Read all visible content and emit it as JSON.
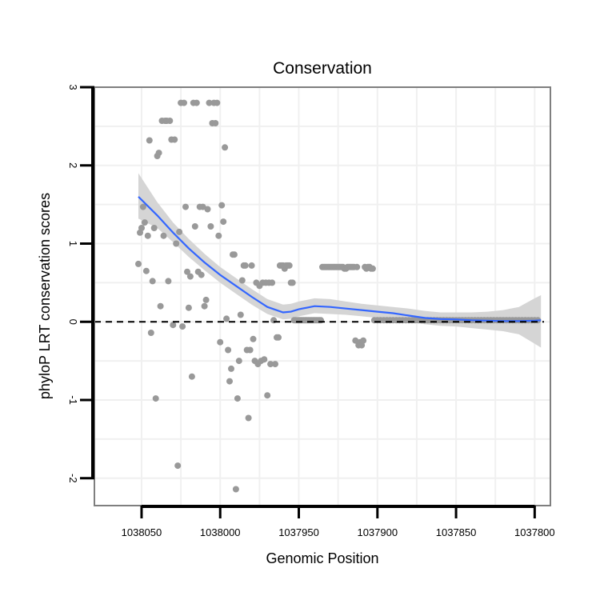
{
  "chart_data": {
    "type": "scatter",
    "title": "Conservation",
    "xlabel": "Genomic Position",
    "ylabel": "phyloP LRT conservation scores",
    "xlim": [
      1038080,
      1037790
    ],
    "x_reversed": true,
    "ylim": [
      -2.35,
      3.0
    ],
    "xticks": [
      1038050,
      1038000,
      1037950,
      1037900,
      1037850,
      1037800
    ],
    "yticks": [
      -2,
      -1,
      0,
      1,
      2,
      3
    ],
    "grid": true,
    "reference_line": {
      "y": 0,
      "style": "dashed",
      "color": "#000000"
    },
    "colors": {
      "points": "#999999",
      "smooth": "#3366ff",
      "ribbon": "#d3d3d3",
      "grid": "#f0f0f0",
      "panel_border": "#7f7f7f"
    },
    "points": [
      [
        1038052,
        0.74
      ],
      [
        1038051,
        1.14
      ],
      [
        1038050,
        1.2
      ],
      [
        1038049,
        1.47
      ],
      [
        1038048,
        1.27
      ],
      [
        1038047,
        0.65
      ],
      [
        1038046,
        1.1
      ],
      [
        1038045,
        2.32
      ],
      [
        1038044,
        -0.14
      ],
      [
        1038043,
        0.52
      ],
      [
        1038042,
        1.2
      ],
      [
        1038041,
        -0.98
      ],
      [
        1038040,
        2.12
      ],
      [
        1038039,
        2.16
      ],
      [
        1038038,
        0.2
      ],
      [
        1038037,
        2.57
      ],
      [
        1038036,
        1.1
      ],
      [
        1038035,
        2.57
      ],
      [
        1038034,
        2.57
      ],
      [
        1038033,
        0.52
      ],
      [
        1038032,
        2.57
      ],
      [
        1038031,
        2.33
      ],
      [
        1038030,
        -0.04
      ],
      [
        1038029,
        2.33
      ],
      [
        1038028,
        1.0
      ],
      [
        1038027,
        -1.84
      ],
      [
        1038026,
        1.15
      ],
      [
        1038025,
        2.8
      ],
      [
        1038024,
        -0.06
      ],
      [
        1038023,
        2.8
      ],
      [
        1038022,
        1.47
      ],
      [
        1038021,
        0.64
      ],
      [
        1038020,
        0.18
      ],
      [
        1038019,
        0.58
      ],
      [
        1038018,
        -0.7
      ],
      [
        1038017,
        2.8
      ],
      [
        1038016,
        1.22
      ],
      [
        1038015,
        2.8
      ],
      [
        1038014,
        0.64
      ],
      [
        1038013,
        1.47
      ],
      [
        1038012,
        0.6
      ],
      [
        1038011,
        1.47
      ],
      [
        1038010,
        0.2
      ],
      [
        1038009,
        0.28
      ],
      [
        1038008,
        1.44
      ],
      [
        1038007,
        2.8
      ],
      [
        1038006,
        1.22
      ],
      [
        1038005,
        2.54
      ],
      [
        1038004,
        2.8
      ],
      [
        1038003,
        2.54
      ],
      [
        1038002,
        2.8
      ],
      [
        1038001,
        1.1
      ],
      [
        1038000,
        -0.26
      ],
      [
        1037999,
        1.49
      ],
      [
        1037998,
        1.28
      ],
      [
        1037997,
        2.23
      ],
      [
        1037996,
        0.04
      ],
      [
        1037995,
        -0.36
      ],
      [
        1037994,
        -0.76
      ],
      [
        1037993,
        -0.6
      ],
      [
        1037992,
        0.86
      ],
      [
        1037991,
        0.86
      ],
      [
        1037990,
        -2.14
      ],
      [
        1037989,
        -0.98
      ],
      [
        1037988,
        -0.5
      ],
      [
        1037987,
        0.09
      ],
      [
        1037986,
        0.53
      ],
      [
        1037985,
        0.72
      ],
      [
        1037984,
        0.72
      ],
      [
        1037983,
        -0.36
      ],
      [
        1037982,
        -1.23
      ],
      [
        1037981,
        -0.36
      ],
      [
        1037980,
        0.72
      ],
      [
        1037979,
        -0.22
      ],
      [
        1037978,
        -0.5
      ],
      [
        1037977,
        0.5
      ],
      [
        1037976,
        -0.54
      ],
      [
        1037975,
        0.46
      ],
      [
        1037974,
        -0.5
      ],
      [
        1037973,
        0.5
      ],
      [
        1037972,
        -0.48
      ],
      [
        1037971,
        0.5
      ],
      [
        1037970,
        -0.94
      ],
      [
        1037969,
        0.5
      ],
      [
        1037968,
        -0.54
      ],
      [
        1037967,
        0.5
      ],
      [
        1037966,
        0.02
      ],
      [
        1037965,
        -0.54
      ],
      [
        1037964,
        -0.2
      ],
      [
        1037963,
        -0.2
      ],
      [
        1037962,
        0.72
      ],
      [
        1037961,
        0.72
      ],
      [
        1037960,
        0.72
      ],
      [
        1037959,
        0.68
      ],
      [
        1037958,
        0.72
      ],
      [
        1037957,
        0.72
      ],
      [
        1037956,
        0.72
      ],
      [
        1037955,
        0.5
      ],
      [
        1037954,
        0.5
      ],
      [
        1037953,
        0.02
      ],
      [
        1037952,
        0.02
      ],
      [
        1037951,
        0.02
      ],
      [
        1037950,
        0.02
      ],
      [
        1037949,
        0.02
      ],
      [
        1037948,
        0.02
      ],
      [
        1037947,
        0.02
      ],
      [
        1037946,
        0.02
      ],
      [
        1037945,
        0.02
      ],
      [
        1037944,
        0.02
      ],
      [
        1037943,
        0.02
      ],
      [
        1037942,
        0.02
      ],
      [
        1037941,
        0.02
      ],
      [
        1037940,
        0.02
      ],
      [
        1037939,
        0.02
      ],
      [
        1037938,
        0.02
      ],
      [
        1037937,
        0.02
      ],
      [
        1037936,
        0.02
      ],
      [
        1037935,
        0.7
      ],
      [
        1037934,
        0.7
      ],
      [
        1037933,
        0.7
      ],
      [
        1037932,
        0.7
      ],
      [
        1037931,
        0.7
      ],
      [
        1037930,
        0.7
      ],
      [
        1037929,
        0.7
      ],
      [
        1037928,
        0.7
      ],
      [
        1037927,
        0.7
      ],
      [
        1037926,
        0.7
      ],
      [
        1037925,
        0.7
      ],
      [
        1037924,
        0.7
      ],
      [
        1037923,
        0.7
      ],
      [
        1037922,
        0.7
      ],
      [
        1037921,
        0.68
      ],
      [
        1037920,
        0.68
      ],
      [
        1037919,
        0.7
      ],
      [
        1037918,
        0.7
      ],
      [
        1037917,
        0.7
      ],
      [
        1037916,
        0.7
      ],
      [
        1037915,
        0.7
      ],
      [
        1037914,
        -0.24
      ],
      [
        1037913,
        0.7
      ],
      [
        1037912,
        -0.3
      ],
      [
        1037911,
        -0.26
      ],
      [
        1037910,
        -0.3
      ],
      [
        1037909,
        -0.24
      ],
      [
        1037908,
        0.7
      ],
      [
        1037907,
        0.68
      ],
      [
        1037906,
        0.7
      ],
      [
        1037905,
        0.7
      ],
      [
        1037904,
        0.68
      ],
      [
        1037903,
        0.68
      ],
      [
        1037902,
        0.02
      ],
      [
        1037900,
        0.02
      ],
      [
        1037898,
        0.02
      ],
      [
        1037896,
        0.02
      ],
      [
        1037894,
        0.02
      ],
      [
        1037892,
        0.02
      ],
      [
        1037890,
        0.02
      ],
      [
        1037888,
        0.02
      ],
      [
        1037886,
        0.02
      ],
      [
        1037884,
        0.02
      ],
      [
        1037882,
        0.02
      ],
      [
        1037880,
        0.02
      ],
      [
        1037878,
        0.02
      ],
      [
        1037876,
        0.02
      ],
      [
        1037874,
        0.02
      ],
      [
        1037872,
        0.02
      ],
      [
        1037870,
        0.02
      ],
      [
        1037868,
        0.02
      ],
      [
        1037866,
        0.02
      ],
      [
        1037864,
        0.02
      ],
      [
        1037862,
        0.02
      ],
      [
        1037860,
        0.02
      ],
      [
        1037858,
        0.02
      ],
      [
        1037856,
        0.02
      ],
      [
        1037854,
        0.02
      ],
      [
        1037852,
        0.02
      ],
      [
        1037850,
        0.02
      ],
      [
        1037848,
        0.02
      ],
      [
        1037846,
        0.02
      ],
      [
        1037844,
        0.02
      ],
      [
        1037842,
        0.02
      ],
      [
        1037840,
        0.02
      ],
      [
        1037838,
        0.02
      ],
      [
        1037836,
        0.02
      ],
      [
        1037834,
        0.02
      ],
      [
        1037832,
        0.02
      ],
      [
        1037830,
        0.02
      ],
      [
        1037828,
        0.02
      ],
      [
        1037826,
        0.02
      ],
      [
        1037824,
        0.02
      ],
      [
        1037822,
        0.02
      ],
      [
        1037820,
        0.02
      ],
      [
        1037818,
        0.02
      ],
      [
        1037816,
        0.02
      ],
      [
        1037814,
        0.02
      ],
      [
        1037812,
        0.02
      ],
      [
        1037810,
        0.02
      ],
      [
        1037808,
        0.02
      ],
      [
        1037806,
        0.02
      ],
      [
        1037804,
        0.02
      ],
      [
        1037802,
        0.02
      ],
      [
        1037800,
        0.02
      ],
      [
        1037798,
        0.02
      ]
    ],
    "smooth": {
      "x": [
        1038052,
        1038040,
        1038030,
        1038020,
        1038010,
        1038000,
        1037990,
        1037980,
        1037970,
        1037960,
        1037955,
        1037950,
        1037940,
        1037930,
        1037920,
        1037910,
        1037900,
        1037890,
        1037880,
        1037870,
        1037860,
        1037850,
        1037840,
        1037830,
        1037820,
        1037810,
        1037800,
        1037796
      ],
      "y": [
        1.6,
        1.36,
        1.14,
        0.94,
        0.76,
        0.6,
        0.46,
        0.32,
        0.19,
        0.12,
        0.13,
        0.16,
        0.2,
        0.19,
        0.17,
        0.15,
        0.13,
        0.11,
        0.08,
        0.05,
        0.035,
        0.03,
        0.02,
        0.015,
        0.01,
        0.01,
        0.015,
        0.02
      ],
      "lower": [
        1.32,
        1.2,
        1.02,
        0.83,
        0.66,
        0.5,
        0.36,
        0.22,
        0.1,
        0.03,
        0.04,
        0.07,
        0.11,
        0.1,
        0.09,
        0.07,
        0.05,
        0.02,
        0.0,
        -0.03,
        -0.05,
        -0.06,
        -0.08,
        -0.1,
        -0.12,
        -0.16,
        -0.28,
        -0.33
      ],
      "upper": [
        1.9,
        1.53,
        1.27,
        1.06,
        0.87,
        0.7,
        0.56,
        0.42,
        0.29,
        0.22,
        0.23,
        0.26,
        0.3,
        0.29,
        0.26,
        0.23,
        0.21,
        0.19,
        0.17,
        0.14,
        0.12,
        0.12,
        0.12,
        0.13,
        0.15,
        0.19,
        0.3,
        0.34
      ]
    }
  }
}
